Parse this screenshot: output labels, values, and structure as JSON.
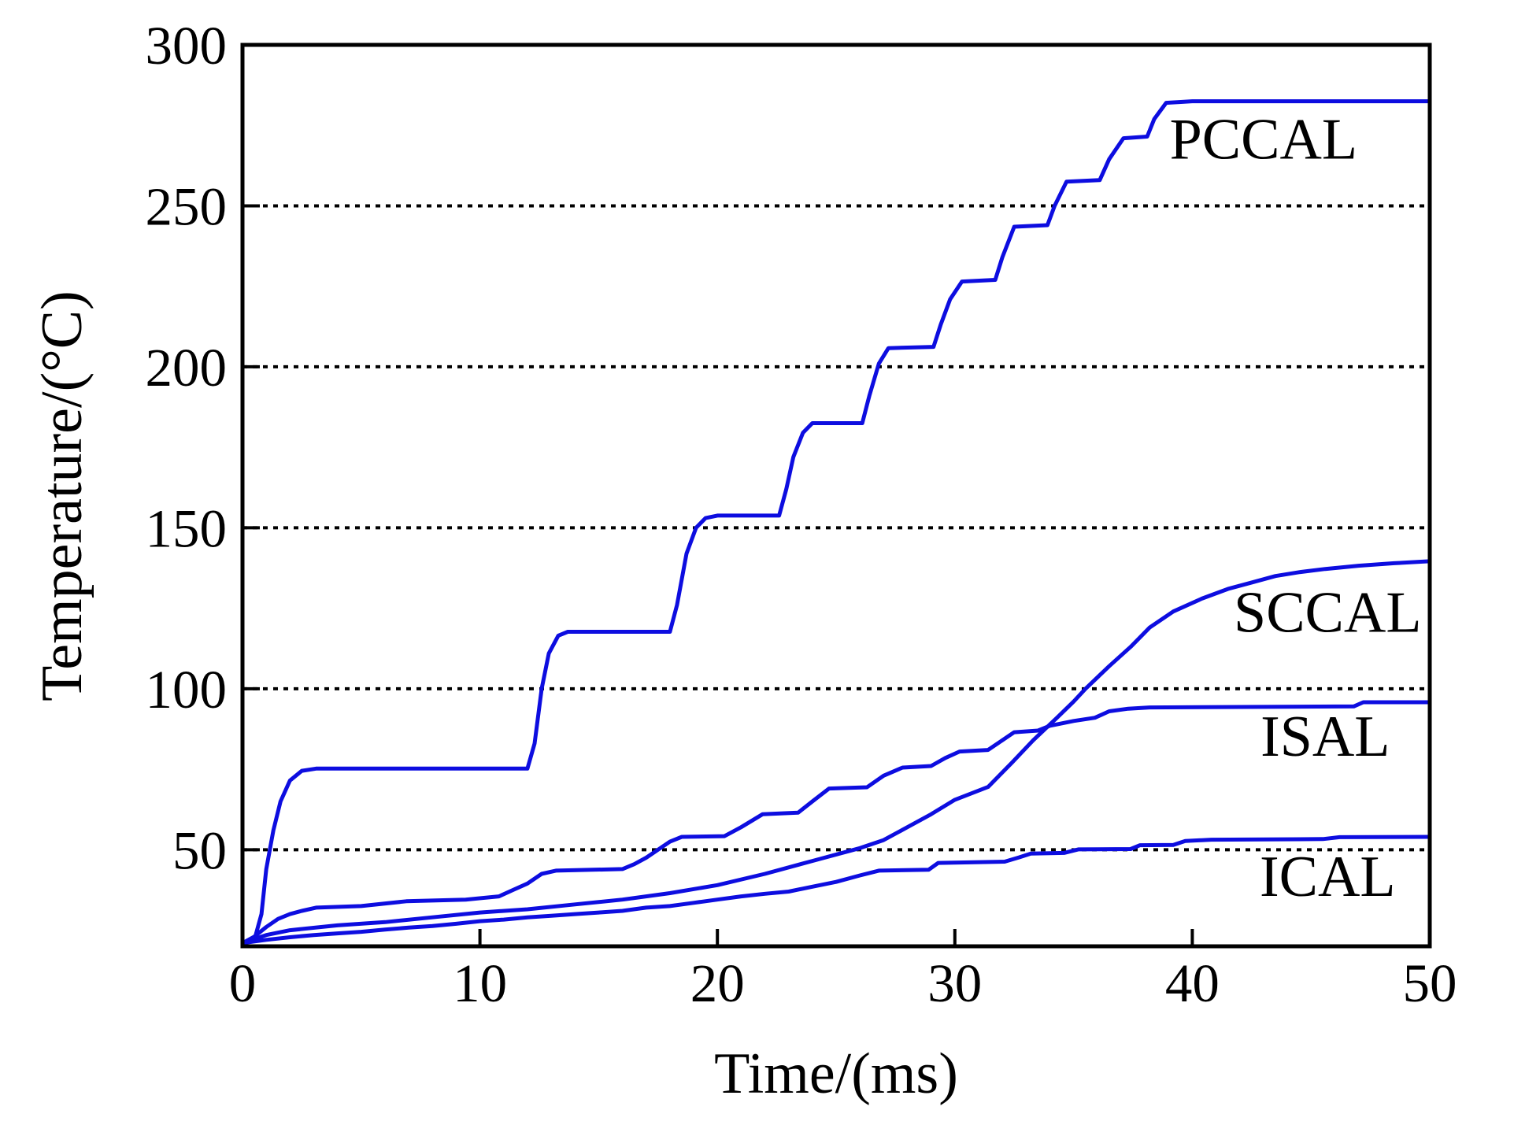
{
  "figure": {
    "background": "#ffffff",
    "axis_color": "#000000",
    "gridline_color": "#000000",
    "line_color": "#0d0de0"
  },
  "chart_data": {
    "type": "line",
    "title": "",
    "xlabel": "Time/(ms)",
    "ylabel": "Temperature/(°C)",
    "xlim": [
      0,
      50
    ],
    "ylim": [
      20,
      300
    ],
    "xticks": [
      0,
      10,
      20,
      30,
      40,
      50
    ],
    "yticks": [
      50,
      100,
      150,
      200,
      250,
      300
    ],
    "grid": {
      "y_dotted_at": [
        50,
        100,
        150,
        200,
        250
      ],
      "style": "dotted"
    },
    "legend_position": "inline-labels",
    "series": [
      {
        "name": "PCCAL",
        "label": "PCCAL",
        "label_at": [
          43.0,
          271
        ],
        "points": [
          [
            0,
            21
          ],
          [
            0.5,
            22
          ],
          [
            0.8,
            30
          ],
          [
            1.0,
            44
          ],
          [
            1.3,
            56
          ],
          [
            1.6,
            65
          ],
          [
            2.0,
            71.5
          ],
          [
            2.5,
            74.5
          ],
          [
            3.1,
            75.2
          ],
          [
            12.0,
            75.2
          ],
          [
            12.3,
            83
          ],
          [
            12.6,
            100
          ],
          [
            12.9,
            111
          ],
          [
            13.3,
            116.5
          ],
          [
            13.7,
            117.7
          ],
          [
            18.0,
            117.7
          ],
          [
            18.3,
            126
          ],
          [
            18.7,
            142
          ],
          [
            19.1,
            150
          ],
          [
            19.5,
            153
          ],
          [
            20.0,
            153.8
          ],
          [
            22.6,
            153.8
          ],
          [
            22.9,
            162
          ],
          [
            23.2,
            172
          ],
          [
            23.6,
            179.5
          ],
          [
            24.0,
            182.5
          ],
          [
            26.1,
            182.5
          ],
          [
            26.4,
            191
          ],
          [
            26.8,
            201
          ],
          [
            27.2,
            205.8
          ],
          [
            29.1,
            206.2
          ],
          [
            29.4,
            213
          ],
          [
            29.8,
            221
          ],
          [
            30.3,
            226.5
          ],
          [
            31.7,
            227
          ],
          [
            32.0,
            234
          ],
          [
            32.5,
            243.5
          ],
          [
            33.9,
            244
          ],
          [
            34.2,
            250
          ],
          [
            34.7,
            257.5
          ],
          [
            36.1,
            258
          ],
          [
            36.5,
            264.5
          ],
          [
            37.1,
            271
          ],
          [
            38.1,
            271.5
          ],
          [
            38.4,
            277
          ],
          [
            38.9,
            282
          ],
          [
            40.0,
            282.5
          ],
          [
            50,
            282.5
          ]
        ]
      },
      {
        "name": "SCCAL",
        "label": "SCCAL",
        "label_at": [
          45.7,
          124
        ],
        "points": [
          [
            0,
            21
          ],
          [
            1,
            23.5
          ],
          [
            2,
            25
          ],
          [
            4,
            26.5
          ],
          [
            6,
            27.5
          ],
          [
            8,
            29
          ],
          [
            10,
            30.5
          ],
          [
            12,
            31.5
          ],
          [
            14,
            33
          ],
          [
            16,
            34.5
          ],
          [
            18,
            36.5
          ],
          [
            20,
            39
          ],
          [
            22,
            42.5
          ],
          [
            24,
            46.5
          ],
          [
            26,
            50.5
          ],
          [
            27,
            53
          ],
          [
            28,
            57
          ],
          [
            29,
            61
          ],
          [
            30,
            65.5
          ],
          [
            31.4,
            69.5
          ],
          [
            32.4,
            77
          ],
          [
            33.3,
            84
          ],
          [
            34.3,
            91
          ],
          [
            35,
            96
          ],
          [
            35.5,
            100
          ],
          [
            36.5,
            107
          ],
          [
            37.4,
            113
          ],
          [
            38.2,
            119
          ],
          [
            39.2,
            124
          ],
          [
            40.4,
            128
          ],
          [
            41.5,
            131
          ],
          [
            42.5,
            133
          ],
          [
            43.5,
            135
          ],
          [
            44.5,
            136.2
          ],
          [
            45.6,
            137.2
          ],
          [
            47,
            138.2
          ],
          [
            48.5,
            139
          ],
          [
            50,
            139.6
          ]
        ]
      },
      {
        "name": "ISAL",
        "label": "ISAL",
        "label_at": [
          45.6,
          85.5
        ],
        "points": [
          [
            0,
            21
          ],
          [
            0.5,
            23
          ],
          [
            1.0,
            26
          ],
          [
            1.5,
            28.5
          ],
          [
            2.0,
            30
          ],
          [
            2.5,
            31
          ],
          [
            3.1,
            32
          ],
          [
            5,
            32.5
          ],
          [
            6.9,
            34
          ],
          [
            9.4,
            34.5
          ],
          [
            10.8,
            35.5
          ],
          [
            11.4,
            37.5
          ],
          [
            12.0,
            39.5
          ],
          [
            12.6,
            42.5
          ],
          [
            13.2,
            43.5
          ],
          [
            16.0,
            44
          ],
          [
            16.5,
            45.5
          ],
          [
            17.0,
            47.5
          ],
          [
            17.5,
            50
          ],
          [
            18.0,
            52.5
          ],
          [
            18.5,
            54
          ],
          [
            20.3,
            54.2
          ],
          [
            21.0,
            57
          ],
          [
            21.9,
            61
          ],
          [
            23.4,
            61.5
          ],
          [
            24.0,
            65
          ],
          [
            24.7,
            69
          ],
          [
            26.3,
            69.4
          ],
          [
            27.0,
            73
          ],
          [
            27.8,
            75.5
          ],
          [
            29.0,
            76
          ],
          [
            29.6,
            78.5
          ],
          [
            30.2,
            80.5
          ],
          [
            31.4,
            81
          ],
          [
            32.0,
            84
          ],
          [
            32.5,
            86.5
          ],
          [
            33.5,
            87
          ],
          [
            34.0,
            88.5
          ],
          [
            35.0,
            90
          ],
          [
            35.9,
            91
          ],
          [
            36.5,
            93
          ],
          [
            37.3,
            93.8
          ],
          [
            38.2,
            94.2
          ],
          [
            46.8,
            94.5
          ],
          [
            47.2,
            95.8
          ],
          [
            50,
            95.8
          ]
        ]
      },
      {
        "name": "ICAL",
        "label": "ICAL",
        "label_at": [
          45.7,
          42
        ],
        "points": [
          [
            0,
            21
          ],
          [
            1,
            22
          ],
          [
            2,
            22.8
          ],
          [
            3,
            23.5
          ],
          [
            4,
            24
          ],
          [
            5,
            24.5
          ],
          [
            6,
            25.2
          ],
          [
            7,
            25.8
          ],
          [
            8,
            26.3
          ],
          [
            9,
            27
          ],
          [
            10,
            27.8
          ],
          [
            11,
            28.3
          ],
          [
            12,
            29
          ],
          [
            13,
            29.5
          ],
          [
            14,
            30
          ],
          [
            15,
            30.5
          ],
          [
            16,
            31
          ],
          [
            17,
            32
          ],
          [
            18,
            32.5
          ],
          [
            19,
            33.5
          ],
          [
            20,
            34.5
          ],
          [
            21,
            35.5
          ],
          [
            22,
            36.3
          ],
          [
            23,
            37
          ],
          [
            24,
            38.5
          ],
          [
            25,
            40
          ],
          [
            26,
            42
          ],
          [
            26.8,
            43.5
          ],
          [
            28.9,
            43.8
          ],
          [
            29.3,
            45.9
          ],
          [
            32.1,
            46.3
          ],
          [
            32.7,
            47.6
          ],
          [
            33.2,
            48.8
          ],
          [
            34.6,
            49
          ],
          [
            35.2,
            50.1
          ],
          [
            37.4,
            50.2
          ],
          [
            37.8,
            51.4
          ],
          [
            39.2,
            51.5
          ],
          [
            39.7,
            52.7
          ],
          [
            40.8,
            53.1
          ],
          [
            45.5,
            53.3
          ],
          [
            46.2,
            53.9
          ],
          [
            50,
            54
          ]
        ]
      }
    ]
  }
}
